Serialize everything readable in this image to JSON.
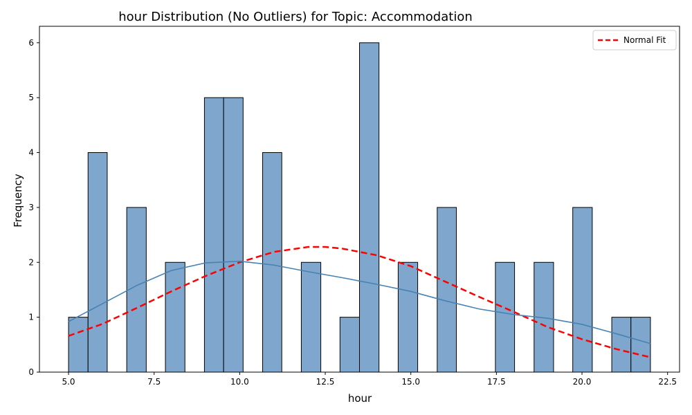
{
  "chart_data": {
    "type": "bar",
    "title": "hour Distribution (No Outliers) for Topic: Accommodation",
    "xlabel": "hour",
    "ylabel": "Frequency",
    "xlim": [
      4.15,
      22.85
    ],
    "ylim": [
      0,
      6.3
    ],
    "xticks": [
      5.0,
      7.5,
      10.0,
      12.5,
      15.0,
      17.5,
      20.0,
      22.5
    ],
    "xtick_labels": [
      "5.0",
      "7.5",
      "10.0",
      "12.5",
      "15.0",
      "17.5",
      "20.0",
      "22.5"
    ],
    "yticks": [
      0,
      1,
      2,
      3,
      4,
      5,
      6
    ],
    "ytick_labels": [
      "0",
      "1",
      "2",
      "3",
      "4",
      "5",
      "6"
    ],
    "grid": false,
    "legend_position": "top-right",
    "bar_color": "#7fa6cc",
    "bins": [
      {
        "x0": 5.0,
        "x1": 5.57,
        "count": 1
      },
      {
        "x0": 5.57,
        "x1": 6.13,
        "count": 4
      },
      {
        "x0": 6.7,
        "x1": 7.27,
        "count": 3
      },
      {
        "x0": 7.83,
        "x1": 8.4,
        "count": 2
      },
      {
        "x0": 8.97,
        "x1": 9.53,
        "count": 5
      },
      {
        "x0": 9.53,
        "x1": 10.1,
        "count": 5
      },
      {
        "x0": 10.67,
        "x1": 11.23,
        "count": 4
      },
      {
        "x0": 11.8,
        "x1": 12.37,
        "count": 2
      },
      {
        "x0": 12.93,
        "x1": 13.5,
        "count": 1
      },
      {
        "x0": 13.5,
        "x1": 14.07,
        "count": 6
      },
      {
        "x0": 14.63,
        "x1": 15.2,
        "count": 2
      },
      {
        "x0": 15.77,
        "x1": 16.33,
        "count": 3
      },
      {
        "x0": 17.47,
        "x1": 18.03,
        "count": 2
      },
      {
        "x0": 18.6,
        "x1": 19.17,
        "count": 2
      },
      {
        "x0": 19.73,
        "x1": 20.3,
        "count": 3
      },
      {
        "x0": 20.87,
        "x1": 21.43,
        "count": 1
      },
      {
        "x0": 21.43,
        "x1": 22.0,
        "count": 1
      }
    ],
    "series": [
      {
        "name": "Normal Fit",
        "type": "line",
        "style": "dashed",
        "color": "#ff0000",
        "x": [
          5.0,
          6.0,
          7.0,
          8.0,
          9.0,
          10.0,
          11.0,
          12.0,
          12.5,
          13.0,
          14.0,
          15.0,
          16.0,
          17.0,
          18.0,
          19.0,
          20.0,
          21.0,
          22.0
        ],
        "y": [
          0.66,
          0.88,
          1.17,
          1.47,
          1.75,
          2.0,
          2.19,
          2.28,
          2.28,
          2.25,
          2.13,
          1.93,
          1.65,
          1.37,
          1.1,
          0.82,
          0.6,
          0.42,
          0.27
        ]
      },
      {
        "type": "line",
        "style": "solid",
        "color": "#4682b4",
        "x": [
          5.0,
          6.0,
          7.0,
          8.0,
          9.0,
          10.0,
          11.0,
          12.0,
          13.0,
          14.0,
          15.0,
          16.0,
          17.0,
          18.0,
          19.0,
          20.0,
          21.0,
          22.0
        ],
        "y": [
          0.92,
          1.25,
          1.58,
          1.85,
          1.99,
          2.02,
          1.95,
          1.83,
          1.72,
          1.6,
          1.47,
          1.3,
          1.15,
          1.05,
          0.98,
          0.87,
          0.7,
          0.52
        ]
      }
    ]
  }
}
